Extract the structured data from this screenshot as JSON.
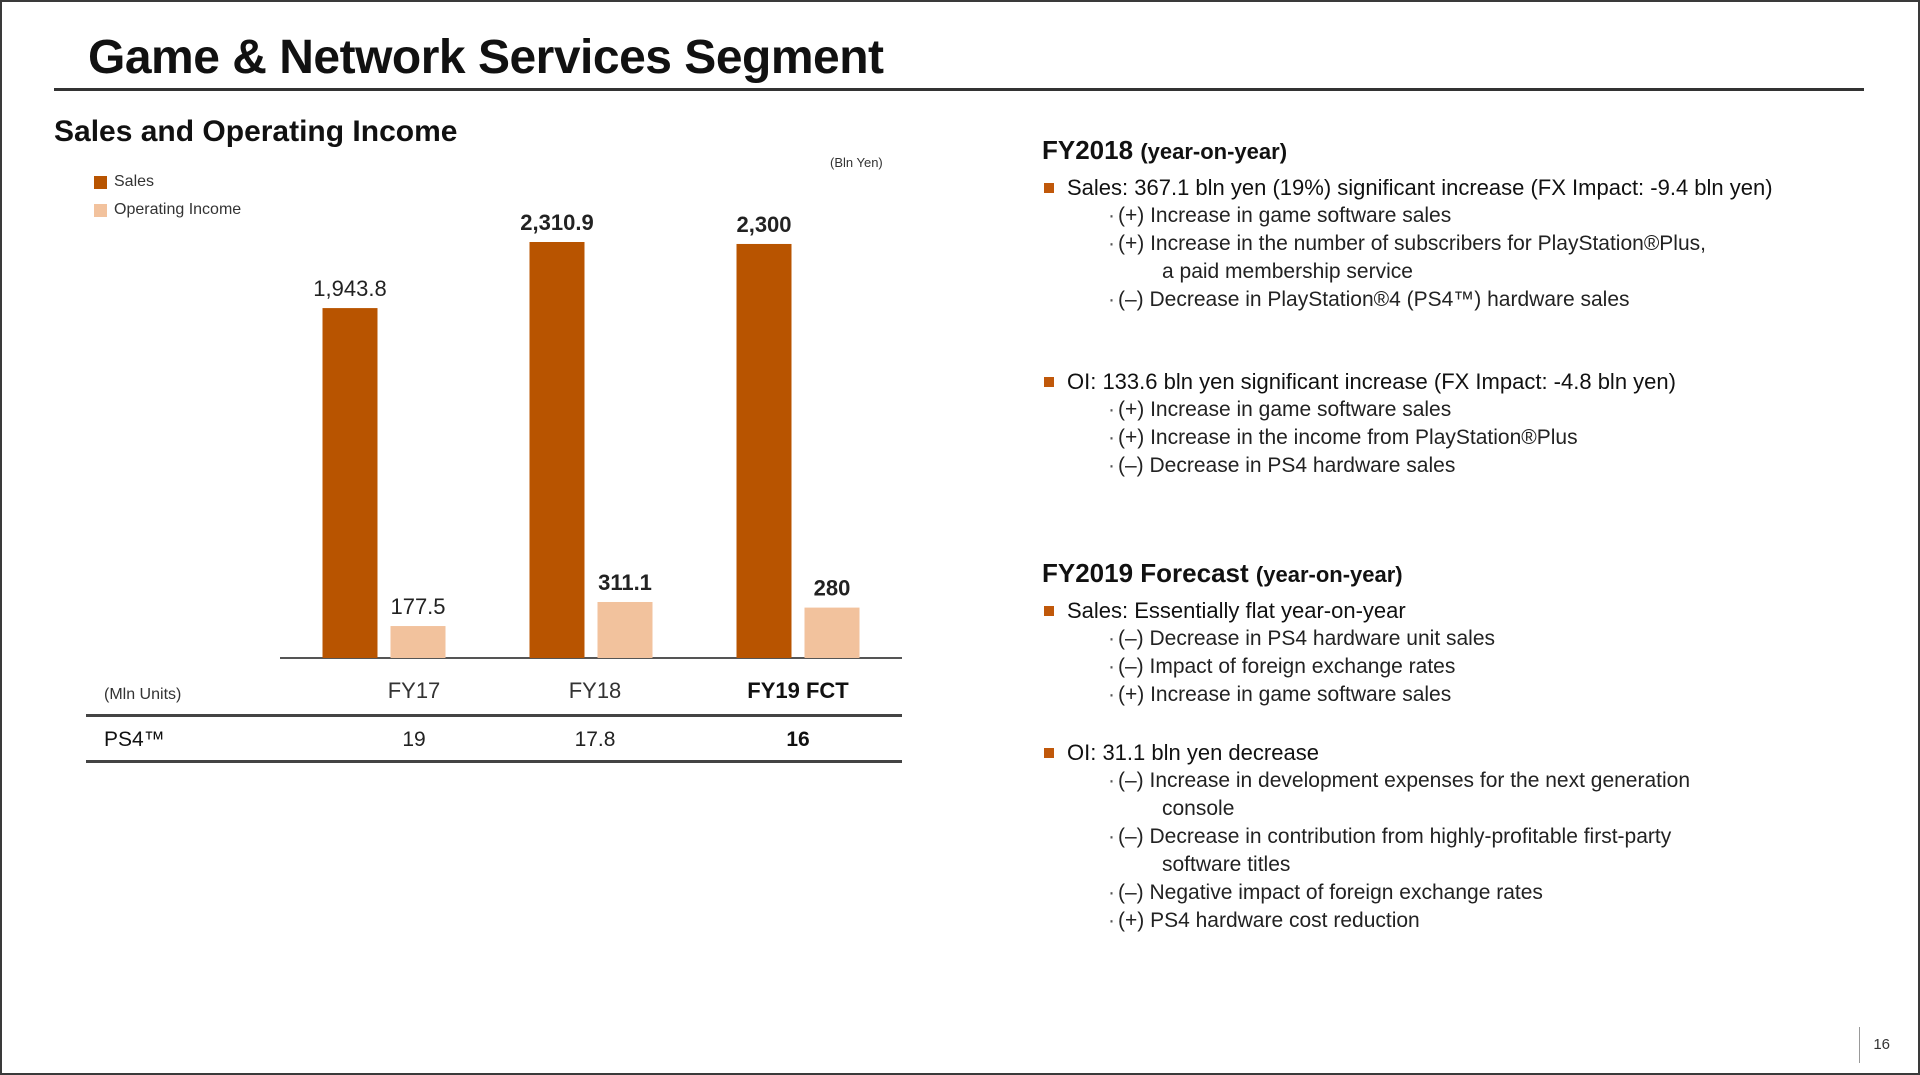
{
  "slide": {
    "title": "Game & Network Services Segment",
    "page_number": "16"
  },
  "left": {
    "heading": "Sales and Operating Income",
    "legend": [
      {
        "label": "Sales",
        "color": "#b85400"
      },
      {
        "label": "Operating Income",
        "color": "#f2c29d"
      }
    ],
    "unit_note": "(Bln Yen)",
    "table": {
      "unit_label": "(Mln Units)",
      "row_label": "PS4™",
      "columns": [
        "FY17",
        "FY18",
        "FY19 FCT"
      ],
      "values": [
        "19",
        "17.8",
        "16"
      ]
    }
  },
  "chart_data": {
    "type": "bar",
    "categories": [
      "FY17",
      "FY18",
      "FY19 FCT"
    ],
    "series": [
      {
        "name": "Sales",
        "values": [
          1943.8,
          2310.9,
          2300
        ],
        "labels": [
          "1,943.8",
          "2,310.9",
          "2,300"
        ],
        "color": "#b85400"
      },
      {
        "name": "Operating Income",
        "values": [
          177.5,
          311.1,
          280
        ],
        "labels": [
          "177.5",
          "311.1",
          "280"
        ],
        "color": "#f2c29d"
      }
    ],
    "ylim": [
      0,
      2310.9
    ]
  },
  "right": {
    "fy2018": {
      "title": "FY2018",
      "title_sub": "(year-on-year)",
      "sales": {
        "text": "Sales: 367.1 bln yen (19%) significant increase (FX Impact: -9.4 bln yen)",
        "items": [
          {
            "text": "(+) Increase in game software sales"
          },
          {
            "text": "(+) Increase in the number of subscribers for PlayStation®Plus,",
            "cont": "a paid membership service"
          },
          {
            "text": "(–) Decrease in PlayStation®4 (PS4™) hardware sales"
          }
        ]
      },
      "oi": {
        "text": "OI: 133.6 bln yen significant increase (FX Impact: -4.8 bln yen)",
        "items": [
          {
            "text": "(+) Increase in game software sales"
          },
          {
            "text": "(+) Increase in the income from PlayStation®Plus"
          },
          {
            "text": "(–) Decrease in PS4 hardware sales"
          }
        ]
      }
    },
    "fy2019": {
      "title": "FY2019 Forecast",
      "title_sub": "(year-on-year)",
      "sales": {
        "text": "Sales: Essentially flat year-on-year",
        "items": [
          {
            "text": "(–) Decrease in PS4 hardware unit sales"
          },
          {
            "text": "(–) Impact of foreign exchange rates"
          },
          {
            "text": "(+) Increase in game software sales"
          }
        ]
      },
      "oi": {
        "text": "OI: 31.1 bln yen decrease",
        "items": [
          {
            "text": "(–) Increase in development expenses for the next generation",
            "cont": "console"
          },
          {
            "text": "(–) Decrease in contribution from highly-profitable first-party",
            "cont": "software titles"
          },
          {
            "text": "(–) Negative impact of foreign exchange rates"
          },
          {
            "text": "(+) PS4 hardware cost reduction"
          }
        ]
      }
    }
  }
}
